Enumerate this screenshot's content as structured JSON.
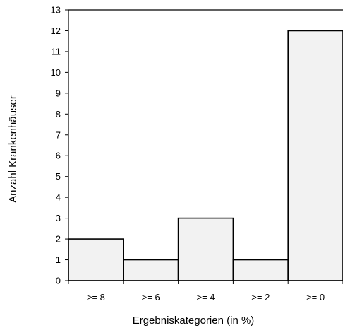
{
  "chart_data": {
    "type": "bar",
    "title": "",
    "xlabel": "Ergebniskategorien (in %)",
    "ylabel": "Anzahl Krankenhäuser",
    "categories": [
      ">= 8",
      ">= 6",
      ">= 4",
      ">= 2",
      ">= 0"
    ],
    "values": [
      2,
      1,
      3,
      1,
      12
    ],
    "ylim": [
      0,
      13
    ],
    "yticks": [
      0,
      1,
      2,
      3,
      4,
      5,
      6,
      7,
      8,
      9,
      10,
      11,
      12,
      13
    ],
    "grid": false,
    "bar_fill": "#f2f2f2",
    "bar_stroke": "#000000"
  }
}
